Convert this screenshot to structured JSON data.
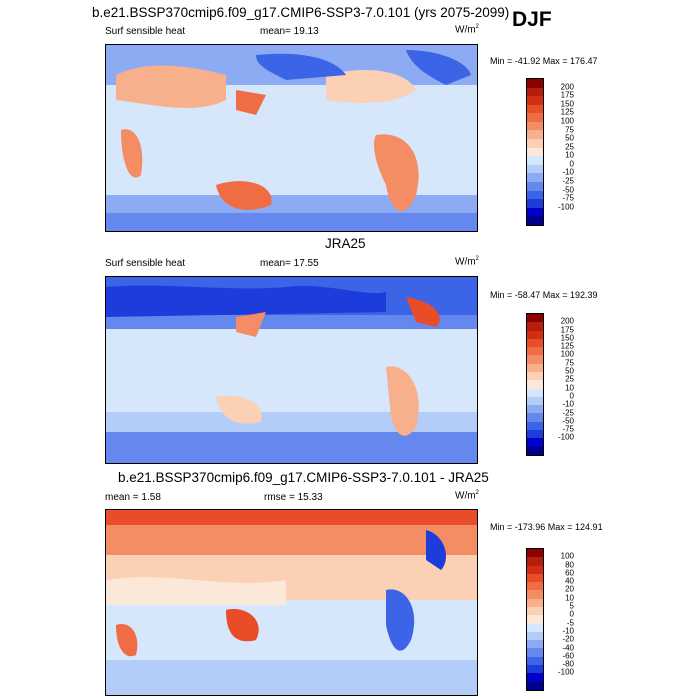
{
  "season": "DJF",
  "colors": {
    "cool_scale": [
      "#00008b",
      "#0000cd",
      "#1e3cdc",
      "#3c64e6",
      "#6488ee",
      "#8cabf3",
      "#b4ccf8",
      "#d6e6fb"
    ],
    "warm_scale": [
      "#fbe8d8",
      "#fbd0b4",
      "#f8b08c",
      "#f48c64",
      "#f06c44",
      "#e84c28",
      "#d22e14",
      "#b41e0a",
      "#8b0000"
    ]
  },
  "panels": [
    {
      "title": "b.e21.BSSP370cmip6.f09_g17.CMIP6-SSP3-7.0.101 (yrs 2075-2099)",
      "left_label": "Surf sensible heat",
      "stat_label": "mean=  19.13",
      "units": "W/m",
      "units_exp": "2",
      "minmax": "Min = -41.92 Max = 176.47",
      "levels": [
        "200",
        "175",
        "150",
        "125",
        "100",
        "75",
        "50",
        "25",
        "10",
        "0",
        "-10",
        "-25",
        "-50",
        "-75",
        "-100"
      ],
      "chart_data": {
        "type": "heatmap",
        "field": "Surf sensible heat",
        "mean": 19.13,
        "min": -41.92,
        "max": 176.47,
        "units": "W/m2",
        "contour_levels": [
          -100,
          -75,
          -50,
          -25,
          -10,
          0,
          10,
          25,
          50,
          75,
          100,
          125,
          150,
          175,
          200
        ]
      }
    },
    {
      "title": "JRA25",
      "left_label": "Surf sensible heat",
      "stat_label": "mean=  17.55",
      "units": "W/m",
      "units_exp": "2",
      "minmax": "Min = -58.47 Max = 192.39",
      "levels": [
        "200",
        "175",
        "150",
        "125",
        "100",
        "75",
        "50",
        "25",
        "10",
        "0",
        "-10",
        "-25",
        "-50",
        "-75",
        "-100"
      ],
      "chart_data": {
        "type": "heatmap",
        "field": "Surf sensible heat",
        "mean": 17.55,
        "min": -58.47,
        "max": 192.39,
        "units": "W/m2",
        "contour_levels": [
          -100,
          -75,
          -50,
          -25,
          -10,
          0,
          10,
          25,
          50,
          75,
          100,
          125,
          150,
          175,
          200
        ]
      }
    },
    {
      "title": "b.e21.BSSP370cmip6.f09_g17.CMIP6-SSP3-7.0.101 - JRA25",
      "left_label": "mean =   1.58",
      "stat_label": "rmse =  15.33",
      "units": "W/m",
      "units_exp": "2",
      "minmax": "Min = -173.96 Max = 124.91",
      "levels": [
        "100",
        "80",
        "60",
        "40",
        "20",
        "10",
        "5",
        "0",
        "-5",
        "-10",
        "-20",
        "-40",
        "-60",
        "-80",
        "-100"
      ],
      "chart_data": {
        "type": "heatmap",
        "field": "difference",
        "mean": 1.58,
        "rmse": 15.33,
        "min": -173.96,
        "max": 124.91,
        "units": "W/m2",
        "contour_levels": [
          -100,
          -80,
          -60,
          -40,
          -20,
          -10,
          -5,
          0,
          5,
          10,
          20,
          40,
          60,
          80,
          100
        ]
      }
    }
  ]
}
